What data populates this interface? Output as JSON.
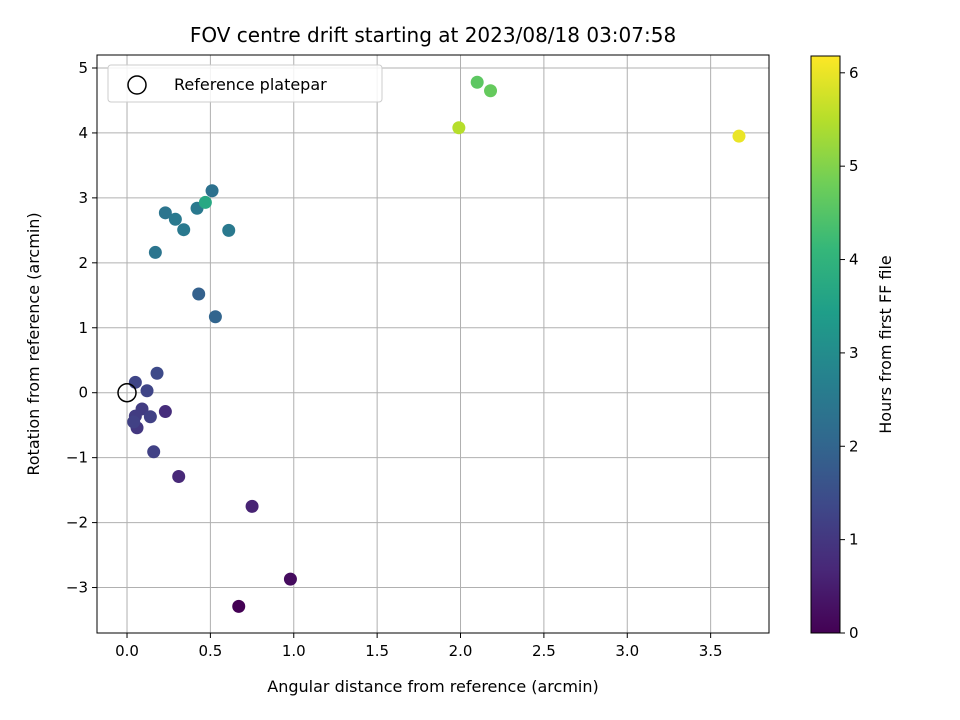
{
  "chart_data": {
    "type": "scatter",
    "title": "FOV centre drift starting at 2023/08/18 03:07:58",
    "xlabel": "Angular distance from reference (arcmin)",
    "ylabel": "Rotation from reference (arcmin)",
    "xlim": [
      -0.18,
      3.85
    ],
    "ylim": [
      -3.7,
      5.2
    ],
    "xticks": [
      0.0,
      0.5,
      1.0,
      1.5,
      2.0,
      2.5,
      3.0,
      3.5
    ],
    "xtick_labels": [
      "0.0",
      "0.5",
      "1.0",
      "1.5",
      "2.0",
      "2.5",
      "3.0",
      "3.5"
    ],
    "yticks": [
      -3,
      -2,
      -1,
      0,
      1,
      2,
      3,
      4,
      5
    ],
    "ytick_labels": [
      "−3",
      "−2",
      "−1",
      "0",
      "1",
      "2",
      "3",
      "4",
      "5"
    ],
    "grid": true,
    "legend": {
      "position": "top-left",
      "entries": [
        "Reference platepar"
      ]
    },
    "reference_point": {
      "x": 0.0,
      "y": 0.0
    },
    "colorbar": {
      "label": "Hours from first FF file",
      "range": [
        0,
        6.18
      ],
      "ticks": [
        0,
        1,
        2,
        3,
        4,
        5,
        6
      ],
      "tick_labels": [
        "0",
        "1",
        "2",
        "3",
        "4",
        "5",
        "6"
      ],
      "colormap": "viridis",
      "stops": [
        "#440154",
        "#482878",
        "#3e4989",
        "#31688e",
        "#26828e",
        "#1f9e89",
        "#35b779",
        "#6ece58",
        "#b5de2b",
        "#fde725"
      ]
    },
    "points": [
      {
        "x": 0.67,
        "y": -3.29,
        "hours": 0.0
      },
      {
        "x": 0.98,
        "y": -2.87,
        "hours": 0.2
      },
      {
        "x": 0.75,
        "y": -1.75,
        "hours": 0.6
      },
      {
        "x": 0.31,
        "y": -1.29,
        "hours": 0.7
      },
      {
        "x": 0.23,
        "y": -0.29,
        "hours": 0.8
      },
      {
        "x": 0.06,
        "y": -0.54,
        "hours": 1.0
      },
      {
        "x": 0.16,
        "y": -0.91,
        "hours": 1.2
      },
      {
        "x": 0.05,
        "y": -0.36,
        "hours": 1.1
      },
      {
        "x": 0.09,
        "y": -0.25,
        "hours": 1.1
      },
      {
        "x": 0.14,
        "y": -0.37,
        "hours": 1.2
      },
      {
        "x": 0.04,
        "y": -0.45,
        "hours": 1.2
      },
      {
        "x": 0.12,
        "y": 0.03,
        "hours": 1.3
      },
      {
        "x": 0.05,
        "y": 0.16,
        "hours": 1.3
      },
      {
        "x": 0.18,
        "y": 0.3,
        "hours": 1.4
      },
      {
        "x": 0.43,
        "y": 1.52,
        "hours": 1.9
      },
      {
        "x": 0.53,
        "y": 1.17,
        "hours": 2.0
      },
      {
        "x": 0.17,
        "y": 2.16,
        "hours": 2.4
      },
      {
        "x": 0.23,
        "y": 2.77,
        "hours": 2.4
      },
      {
        "x": 0.42,
        "y": 2.84,
        "hours": 2.5
      },
      {
        "x": 0.29,
        "y": 2.67,
        "hours": 2.5
      },
      {
        "x": 0.34,
        "y": 2.51,
        "hours": 2.5
      },
      {
        "x": 0.61,
        "y": 2.5,
        "hours": 2.5
      },
      {
        "x": 0.51,
        "y": 3.11,
        "hours": 2.3
      },
      {
        "x": 0.47,
        "y": 2.93,
        "hours": 3.7
      },
      {
        "x": 1.99,
        "y": 4.08,
        "hours": 5.5
      },
      {
        "x": 2.1,
        "y": 4.78,
        "hours": 4.6
      },
      {
        "x": 2.18,
        "y": 4.65,
        "hours": 4.7
      },
      {
        "x": 3.67,
        "y": 3.95,
        "hours": 6.0
      }
    ]
  }
}
